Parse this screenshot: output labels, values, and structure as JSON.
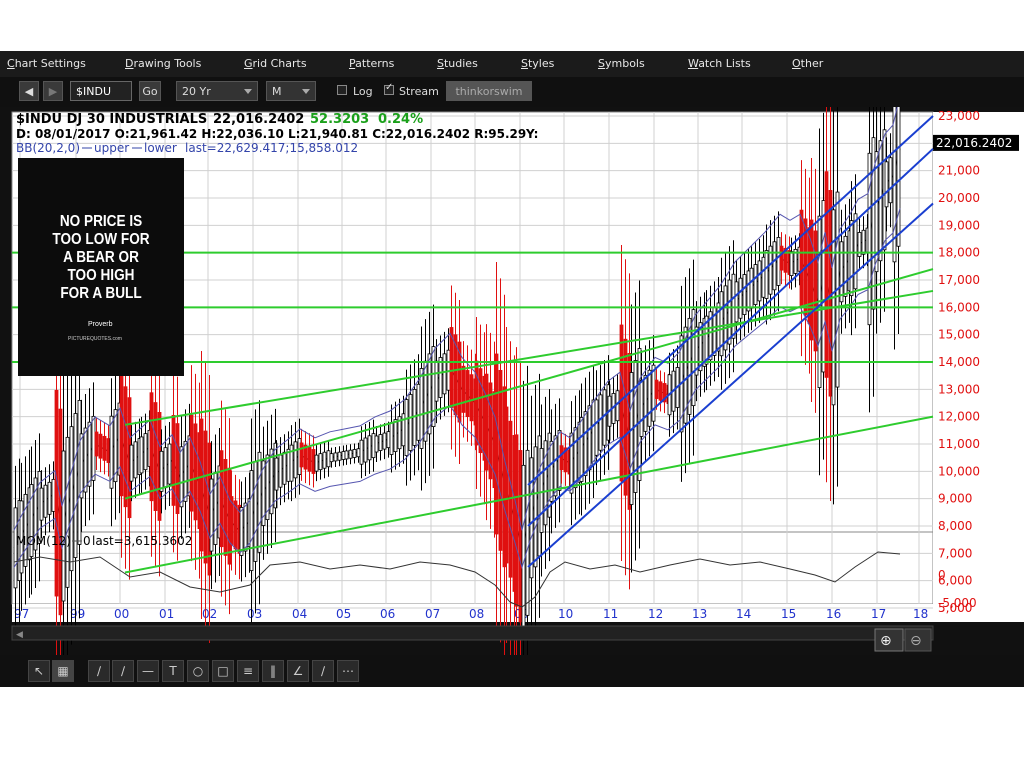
{
  "menu": [
    "Chart Settings",
    "Drawing Tools",
    "Grid Charts",
    "Patterns",
    "Studies",
    "Styles",
    "Symbols",
    "Watch Lists",
    "Other"
  ],
  "toolbar": {
    "symbol": "$INDU",
    "go_label": "Go",
    "period": "20 Yr",
    "aggregation": "M",
    "log_label": "Log",
    "stream_label": "Stream",
    "brand": "thinkorswim"
  },
  "header": {
    "symbol_name": "$INDU DJ 30 INDUSTRIALS",
    "last": "22,016.2402",
    "change": "52.3203",
    "change_pct": "0.24%",
    "ohlc": "D: 08/01/2017 O:21,961.42 H:22,036.10 L:21,940.81 C:22,016.2402 R:95.29",
    "y_label": "Y:",
    "bb": "BB(20,2,0)",
    "bb_upper": "upper",
    "bb_lower": "lower",
    "bb_last": "last=22,629.417;15,858.012"
  },
  "quote": {
    "lines": [
      "NO PRICE IS",
      "TOO LOW FOR",
      "A BEAR OR",
      "TOO HIGH",
      "FOR A BULL"
    ],
    "source": "Proverb",
    "site": "PICTUREQUOTES.com"
  },
  "mom": {
    "label": "MOM(12)",
    "zero": "0",
    "last": "last=3,615.3602"
  },
  "chart_data": {
    "type": "line",
    "title": "$INDU DJ 30 INDUSTRIALS",
    "x": [
      1997,
      1998,
      1999,
      2000,
      2001,
      2002,
      2003,
      2004,
      2005,
      2006,
      2007,
      2008,
      2009,
      2010,
      2011,
      2012,
      2013,
      2014,
      2015,
      2016,
      2017
    ],
    "xtick_labels": [
      "97",
      "99",
      "00",
      "01",
      "02",
      "03",
      "04",
      "05",
      "06",
      "07",
      "08",
      "09",
      "10",
      "11",
      "12",
      "13",
      "14",
      "15",
      "16",
      "17",
      "18"
    ],
    "ytick_labels": [
      "23,000",
      "22,000",
      "21,000",
      "20,000",
      "19,000",
      "18,000",
      "17,000",
      "16,000",
      "15,000",
      "14,000",
      "13,000",
      "12,000",
      "11,000",
      "10,000",
      "9,000",
      "8,000",
      "7,000",
      "6,000",
      "5,000"
    ],
    "mom_ytick_labels": [
      "0",
      "-5,000"
    ],
    "ylim": [
      5000,
      23000
    ],
    "last_price_label": "22,016.2402",
    "series": [
      {
        "name": "$INDU",
        "values": [
          7500,
          8500,
          10500,
          11200,
          10300,
          8500,
          8800,
          10400,
          10500,
          11000,
          13300,
          11500,
          8000,
          10400,
          11500,
          12700,
          14500,
          16500,
          17600,
          17000,
          21900
        ]
      }
    ],
    "colors": {
      "up": "#000000",
      "down": "#e01010",
      "trend_green": "#2ecc2e",
      "trend_blue": "#1a3fd0",
      "bollinger": "#5656b0",
      "axis": "#e01010",
      "xaxis": "#2233cc"
    }
  }
}
